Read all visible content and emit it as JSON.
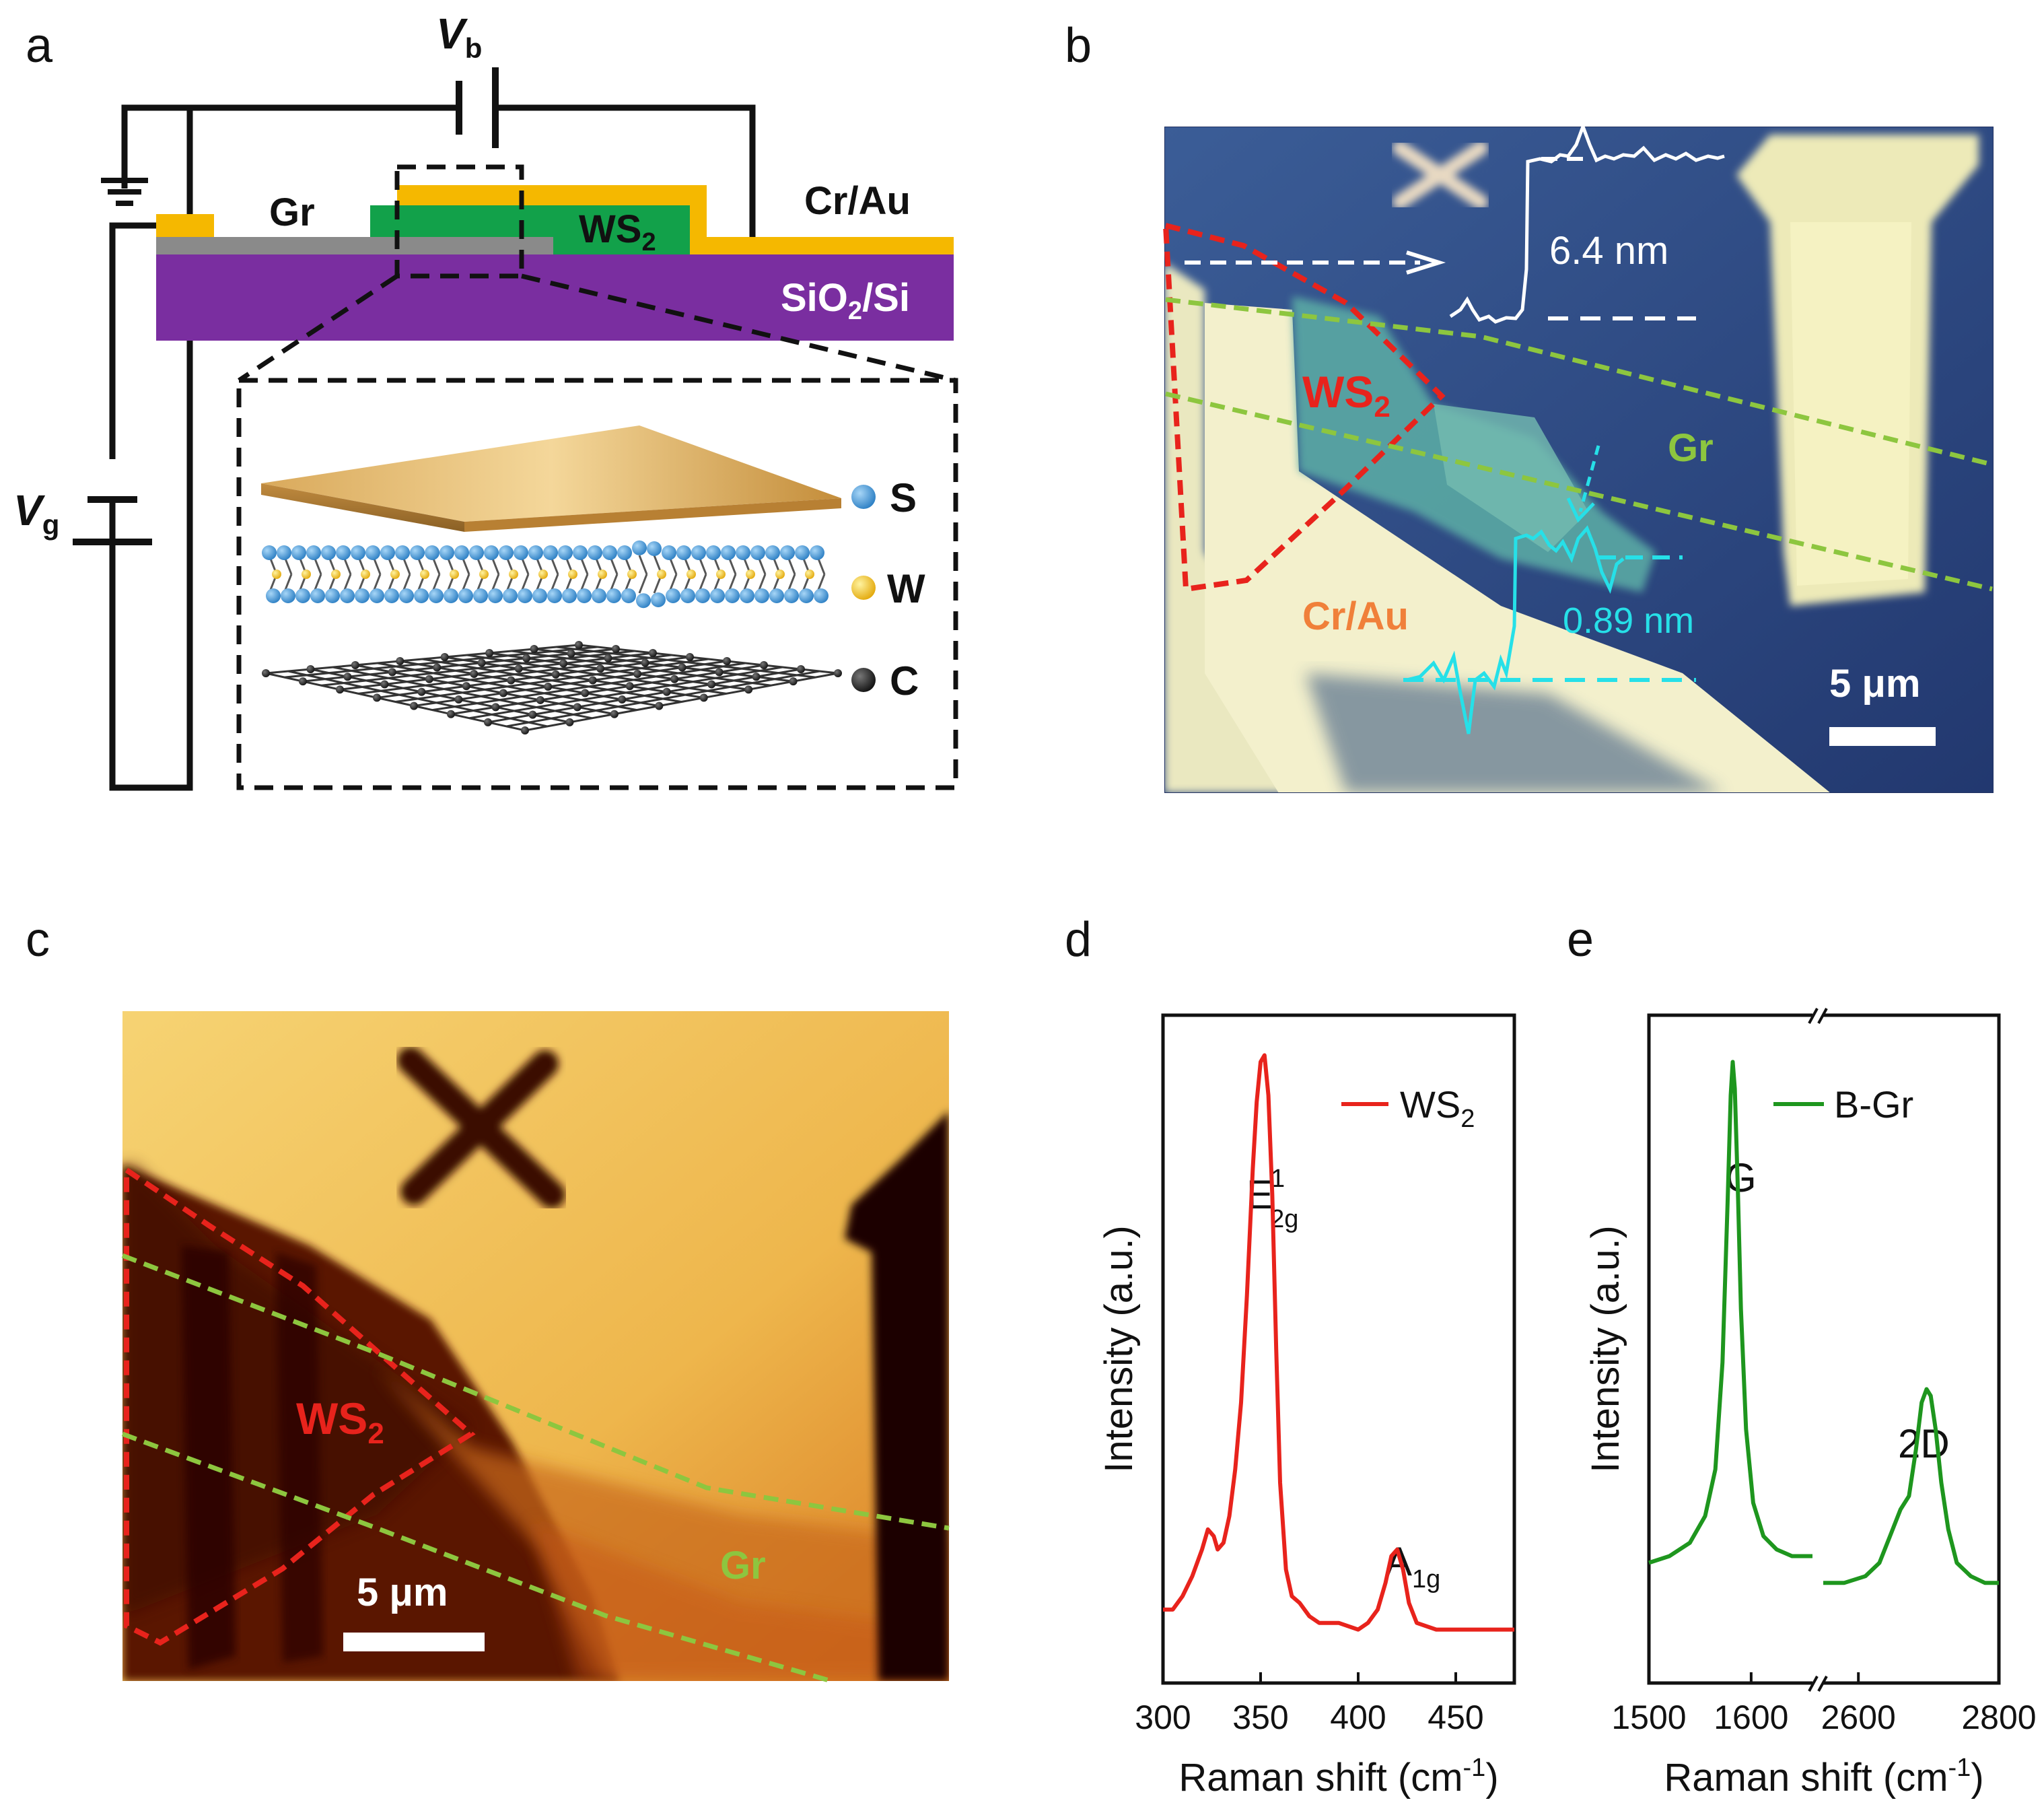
{
  "panel_labels": {
    "a": "a",
    "b": "b",
    "c": "c",
    "d": "d",
    "e": "e"
  },
  "panel_a": {
    "vb_main": "V",
    "vb_sub": "b",
    "vg_main": "V",
    "vg_sub": "g",
    "gr": "Gr",
    "ws2_main": "WS",
    "ws2_sub": "2",
    "crau": "Cr/Au",
    "sio2_a": "SiO",
    "sio2_sub": "2",
    "sio2_b": "/Si",
    "legend": [
      {
        "symbol": "S",
        "color": "#4a9fdc"
      },
      {
        "symbol": "W",
        "color": "#f3c21c"
      },
      {
        "symbol": "C",
        "color": "#111111"
      }
    ]
  },
  "panel_b": {
    "ws2_main": "WS",
    "ws2_sub": "2",
    "gr": "Gr",
    "crau": "Cr/Au",
    "height_ws2": "6.4 nm",
    "height_gr": "0.89 nm",
    "scalebar": "5 μm"
  },
  "panel_c": {
    "ws2_main": "WS",
    "ws2_sub": "2",
    "gr": "Gr",
    "scalebar": "5 μm"
  },
  "chart_data": [
    {
      "type": "line",
      "panel": "d",
      "title": "",
      "xlabel": "Raman shift (cm-1)",
      "xlabel_main": "Raman shift (cm",
      "xlabel_sup": "-1",
      "xlabel_end": ")",
      "ylabel": "Intensity (a.u.)",
      "xlim": [
        300,
        480
      ],
      "ylim": [
        0,
        1
      ],
      "xticks": [
        300,
        350,
        400,
        450
      ],
      "legend": "WS2",
      "legend_main": "WS",
      "legend_sub": "2",
      "color": "#e8231c",
      "annotations": [
        {
          "text": "E",
          "sup": "1",
          "sub": "2g",
          "x": 352
        },
        {
          "text": "A",
          "sub": "1g",
          "x": 420
        }
      ],
      "series": [
        {
          "name": "WS2",
          "x": [
            300,
            305,
            310,
            315,
            320,
            323,
            326,
            328,
            331,
            334,
            337,
            340,
            343,
            346,
            348,
            350,
            352,
            354,
            356,
            358,
            360,
            363,
            366,
            370,
            375,
            380,
            390,
            400,
            405,
            410,
            414,
            417,
            420,
            423,
            426,
            430,
            440,
            450,
            460,
            470,
            480
          ],
          "y": [
            0.11,
            0.11,
            0.13,
            0.16,
            0.2,
            0.23,
            0.22,
            0.2,
            0.21,
            0.25,
            0.32,
            0.42,
            0.58,
            0.77,
            0.87,
            0.93,
            0.94,
            0.88,
            0.73,
            0.5,
            0.3,
            0.17,
            0.13,
            0.12,
            0.1,
            0.09,
            0.09,
            0.08,
            0.09,
            0.11,
            0.15,
            0.19,
            0.2,
            0.17,
            0.12,
            0.09,
            0.08,
            0.08,
            0.08,
            0.08,
            0.08
          ]
        }
      ]
    },
    {
      "type": "line",
      "panel": "e",
      "title": "",
      "xlabel": "Raman shift (cm-1)",
      "xlabel_main": "Raman shift (cm",
      "xlabel_sup": "-1",
      "xlabel_end": ")",
      "ylabel": "Intensity (a.u.)",
      "broken_axis": true,
      "segments": [
        {
          "xlim": [
            1500,
            1660
          ]
        },
        {
          "xlim": [
            2550,
            2800
          ]
        }
      ],
      "ylim": [
        0,
        1
      ],
      "xticks": [
        1500,
        1600,
        2600,
        2800
      ],
      "legend": "B-Gr",
      "color": "#1e961e",
      "annotations": [
        {
          "text": "G",
          "x": 1582
        },
        {
          "text": "2D",
          "x": 2700
        }
      ],
      "series": [
        {
          "name": "B-Gr seg1",
          "x": [
            1500,
            1520,
            1540,
            1555,
            1565,
            1572,
            1577,
            1580,
            1582,
            1584,
            1587,
            1590,
            1595,
            1602,
            1612,
            1625,
            1640,
            1655,
            1660
          ],
          "y": [
            0.18,
            0.19,
            0.21,
            0.25,
            0.32,
            0.48,
            0.72,
            0.88,
            0.93,
            0.89,
            0.74,
            0.56,
            0.38,
            0.27,
            0.22,
            0.2,
            0.19,
            0.19,
            0.19
          ]
        },
        {
          "name": "B-Gr seg2",
          "x": [
            2550,
            2580,
            2610,
            2630,
            2645,
            2660,
            2672,
            2682,
            2690,
            2697,
            2703,
            2710,
            2718,
            2728,
            2740,
            2760,
            2780,
            2800
          ],
          "y": [
            0.15,
            0.15,
            0.16,
            0.18,
            0.22,
            0.26,
            0.28,
            0.35,
            0.42,
            0.44,
            0.43,
            0.38,
            0.3,
            0.23,
            0.18,
            0.16,
            0.15,
            0.15
          ]
        }
      ]
    }
  ]
}
